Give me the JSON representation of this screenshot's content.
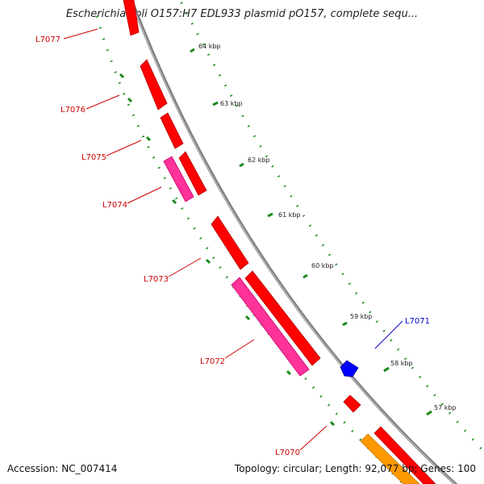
{
  "title": "Escherichia coli O157:H7 EDL933 plasmid pO157, complete sequ...",
  "footer": {
    "accession": "Accession: NC_007414",
    "summary": "Topology: circular; Length: 92,077 bp; Genes: 100"
  },
  "colors": {
    "backbone": "#808080",
    "tick": "#1a8a1a",
    "gene_red": "#ff0000",
    "gene_pink": "#ff3399",
    "gene_blue": "#0000ff",
    "gene_orange": "#ff9900",
    "label_red": "#cc0000",
    "label_blue": "#0000cc"
  },
  "kbp_labels": [
    "64 kbp",
    "63 kbp",
    "62 kbp",
    "61 kbp",
    "60 kbp",
    "59 kbp",
    "58 kbp",
    "57 kbp"
  ],
  "gene_labels": [
    {
      "id": "L7077",
      "color": "red"
    },
    {
      "id": "L7076",
      "color": "red"
    },
    {
      "id": "L7075",
      "color": "red"
    },
    {
      "id": "L7074",
      "color": "red"
    },
    {
      "id": "L7073",
      "color": "red"
    },
    {
      "id": "L7072",
      "color": "red"
    },
    {
      "id": "L7071",
      "color": "blue"
    },
    {
      "id": "L7070",
      "color": "red"
    }
  ]
}
